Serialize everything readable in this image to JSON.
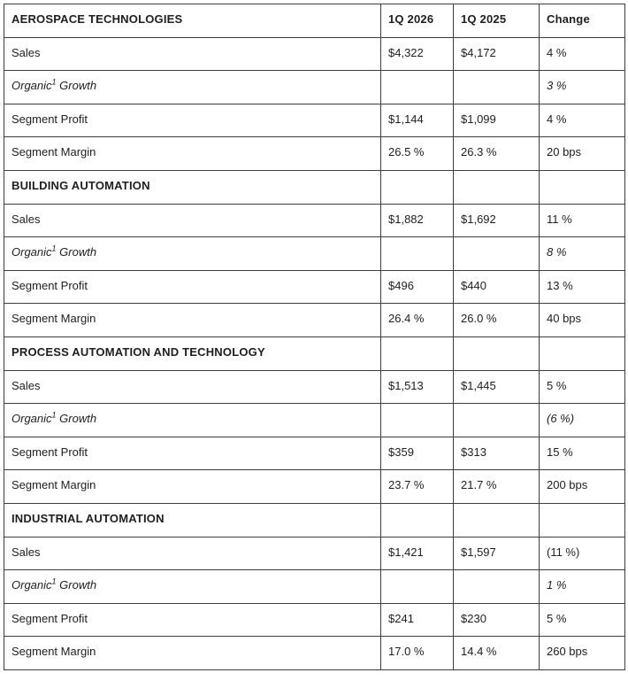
{
  "table": {
    "columns": {
      "period1": "1Q 2026",
      "period2": "1Q 2025",
      "change": "Change"
    },
    "colors": {
      "border": "#3d3d3d",
      "text": "#1e1e1e",
      "background": "#ffffff"
    },
    "sections": [
      {
        "title": "AEROSPACE TECHNOLOGIES",
        "rows": [
          {
            "label": "Sales",
            "v1": "$4,322",
            "v2": "$4,172",
            "change": "4 %"
          },
          {
            "label_prefix": "Organic",
            "label_sup": "1",
            "label_suffix": " Growth",
            "v1": "",
            "v2": "",
            "change": "3 %"
          },
          {
            "label": "Segment Profit",
            "v1": "$1,144",
            "v2": "$1,099",
            "change": "4 %"
          },
          {
            "label": "Segment Margin",
            "v1": "26.5 %",
            "v2": "26.3 %",
            "change": "20 bps"
          }
        ]
      },
      {
        "title": "BUILDING AUTOMATION",
        "rows": [
          {
            "label": "Sales",
            "v1": "$1,882",
            "v2": "$1,692",
            "change": "11 %"
          },
          {
            "label_prefix": "Organic",
            "label_sup": "1",
            "label_suffix": " Growth",
            "v1": "",
            "v2": "",
            "change": "8 %"
          },
          {
            "label": "Segment Profit",
            "v1": "$496",
            "v2": "$440",
            "change": "13 %"
          },
          {
            "label": "Segment Margin",
            "v1": "26.4 %",
            "v2": "26.0 %",
            "change": "40 bps"
          }
        ]
      },
      {
        "title": "PROCESS AUTOMATION AND TECHNOLOGY",
        "rows": [
          {
            "label": "Sales",
            "v1": "$1,513",
            "v2": "$1,445",
            "change": "5 %"
          },
          {
            "label_prefix": "Organic",
            "label_sup": "1",
            "label_suffix": " Growth",
            "v1": "",
            "v2": "",
            "change": "(6 %)"
          },
          {
            "label": "Segment Profit",
            "v1": "$359",
            "v2": "$313",
            "change": "15 %"
          },
          {
            "label": "Segment Margin",
            "v1": "23.7 %",
            "v2": "21.7 %",
            "change": "200 bps"
          }
        ]
      },
      {
        "title": "INDUSTRIAL AUTOMATION",
        "rows": [
          {
            "label": "Sales",
            "v1": "$1,421",
            "v2": "$1,597",
            "change": "(11 %)"
          },
          {
            "label_prefix": "Organic",
            "label_sup": "1",
            "label_suffix": " Growth",
            "v1": "",
            "v2": "",
            "change": "1 %"
          },
          {
            "label": "Segment Profit",
            "v1": "$241",
            "v2": "$230",
            "change": "5 %"
          },
          {
            "label": "Segment Margin",
            "v1": "17.0 %",
            "v2": "14.4 %",
            "change": "260 bps"
          }
        ]
      }
    ]
  }
}
